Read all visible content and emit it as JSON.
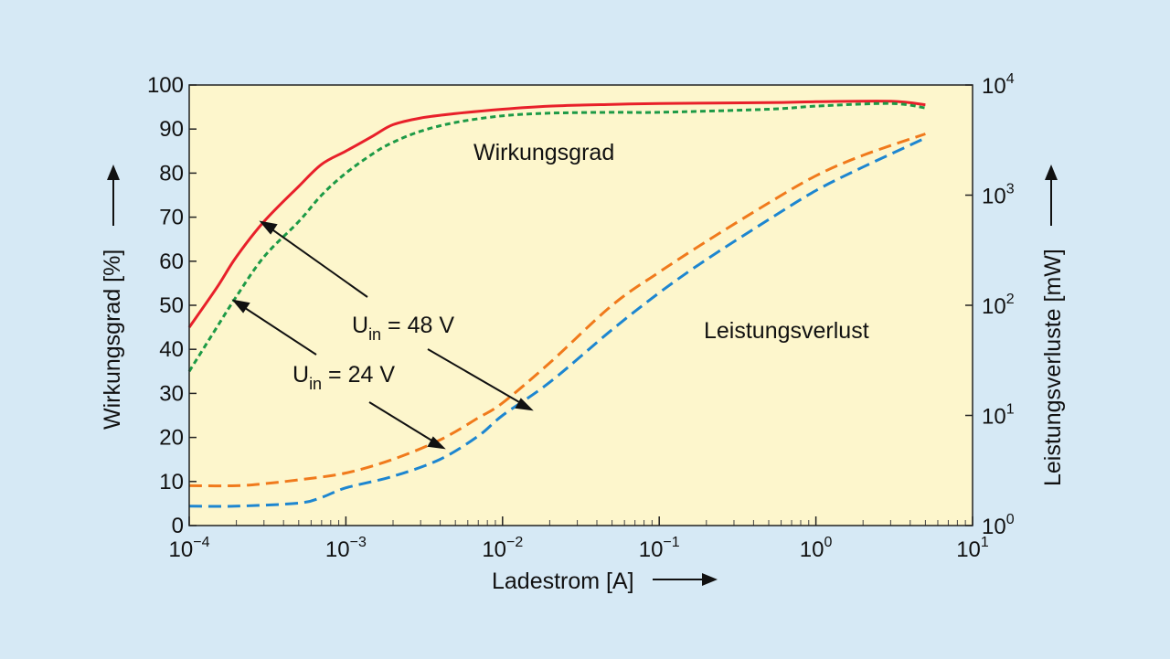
{
  "chart_data": {
    "type": "line",
    "xlabel": "Ladestrom [A]",
    "ylabel_left": "Wirkungsgrad [%]",
    "ylabel_right": "Leistungsverluste [mW]",
    "x_scale": "log",
    "xlim": [
      0.0001,
      10
    ],
    "ylim_left": [
      0,
      100
    ],
    "ylim_right": [
      1,
      10000
    ],
    "y_scale_right": "log",
    "x_ticks": [
      {
        "base": "10",
        "exp": "−4"
      },
      {
        "base": "10",
        "exp": "−3"
      },
      {
        "base": "10",
        "exp": "−2"
      },
      {
        "base": "10",
        "exp": "−1"
      },
      {
        "base": "10",
        "exp": "0"
      },
      {
        "base": "10",
        "exp": "1"
      }
    ],
    "y_left_ticks": [
      "0",
      "10",
      "20",
      "30",
      "40",
      "50",
      "60",
      "70",
      "80",
      "90",
      "100"
    ],
    "y_right_ticks": [
      {
        "base": "10",
        "exp": "0"
      },
      {
        "base": "10",
        "exp": "1"
      },
      {
        "base": "10",
        "exp": "2"
      },
      {
        "base": "10",
        "exp": "3"
      },
      {
        "base": "10",
        "exp": "4"
      }
    ],
    "annotations": {
      "efficiency": "Wirkungsgrad",
      "loss": "Leistungsverlust",
      "u48": {
        "U": "U",
        "sub": "in",
        "rest": " = 48 V"
      },
      "u24": {
        "U": "U",
        "sub": "in",
        "rest": " = 24 V"
      }
    },
    "series": [
      {
        "id": "eff48",
        "axis": "left",
        "color": "#e8202a",
        "dash": "solid",
        "x": [
          0.0001,
          0.00015,
          0.0002,
          0.0003,
          0.0005,
          0.0007,
          0.001,
          0.0015,
          0.002,
          0.003,
          0.005,
          0.01,
          0.02,
          0.05,
          0.1,
          0.5,
          1,
          3,
          5
        ],
        "y": [
          45,
          54,
          61,
          69,
          77,
          82,
          85,
          88.5,
          91,
          92.5,
          93.5,
          94.5,
          95.2,
          95.6,
          95.8,
          96,
          96.2,
          96.3,
          95.5
        ]
      },
      {
        "id": "eff24",
        "axis": "left",
        "color": "#1d9a46",
        "dash": "short",
        "x": [
          0.0001,
          0.00015,
          0.0002,
          0.0003,
          0.0005,
          0.0007,
          0.001,
          0.0015,
          0.002,
          0.003,
          0.005,
          0.01,
          0.02,
          0.05,
          0.1,
          0.5,
          1,
          3,
          5
        ],
        "y": [
          35,
          45,
          52,
          61,
          69,
          75,
          80,
          84.5,
          87,
          89.5,
          91.5,
          93,
          93.6,
          93.8,
          93.8,
          94.5,
          95.2,
          95.8,
          94.8
        ]
      },
      {
        "id": "loss48",
        "axis": "right",
        "color": "#f07a1c",
        "dash": "long",
        "x": [
          0.0001,
          0.0002,
          0.0003,
          0.0005,
          0.001,
          0.002,
          0.004,
          0.007,
          0.01,
          0.02,
          0.05,
          0.1,
          0.2,
          0.5,
          1,
          2,
          5
        ],
        "y": [
          2.3,
          2.3,
          2.4,
          2.6,
          3,
          4,
          6,
          9.5,
          13,
          30,
          100,
          200,
          380,
          850,
          1500,
          2300,
          3600
        ]
      },
      {
        "id": "loss24",
        "axis": "right",
        "color": "#1d86d0",
        "dash": "long",
        "x": [
          0.0001,
          0.0002,
          0.0005,
          0.0007,
          0.001,
          0.002,
          0.004,
          0.007,
          0.01,
          0.02,
          0.05,
          0.1,
          0.2,
          0.5,
          1,
          2,
          5
        ],
        "y": [
          1.5,
          1.5,
          1.6,
          1.8,
          2.2,
          2.8,
          4,
          6.5,
          10,
          20,
          60,
          130,
          260,
          600,
          1100,
          1800,
          3300
        ]
      }
    ]
  }
}
